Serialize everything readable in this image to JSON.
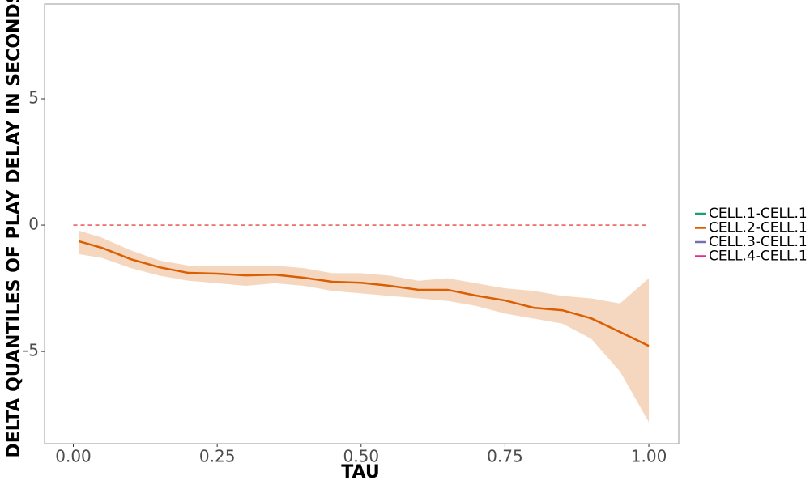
{
  "chart_data": {
    "type": "line",
    "x_label": "TAU",
    "y_label": "DELTA QUANTILES OF PLAY DELAY IN SECONDS",
    "x": [
      0.01,
      0.05,
      0.1,
      0.15,
      0.2,
      0.25,
      0.3,
      0.35,
      0.4,
      0.45,
      0.5,
      0.55,
      0.6,
      0.65,
      0.7,
      0.75,
      0.8,
      0.85,
      0.9,
      0.95,
      1.0
    ],
    "series": [
      {
        "name": "CELL.1-CELL.1",
        "color": "#1b9e77"
      },
      {
        "name": "CELL.2-CELL.1",
        "color": "#d95f02",
        "values": [
          -0.64,
          -0.9,
          -1.35,
          -1.67,
          -1.89,
          -1.92,
          -1.99,
          -1.96,
          -2.08,
          -2.24,
          -2.28,
          -2.4,
          -2.56,
          -2.56,
          -2.79,
          -2.98,
          -3.27,
          -3.37,
          -3.69,
          -4.23,
          -4.78
        ],
        "upper": [
          -0.22,
          -0.5,
          -1.0,
          -1.4,
          -1.6,
          -1.6,
          -1.6,
          -1.6,
          -1.7,
          -1.9,
          -1.9,
          -2.0,
          -2.2,
          -2.1,
          -2.3,
          -2.5,
          -2.6,
          -2.8,
          -2.9,
          -3.1,
          -2.1
        ],
        "lower": [
          -1.15,
          -1.3,
          -1.7,
          -2.0,
          -2.2,
          -2.3,
          -2.4,
          -2.3,
          -2.4,
          -2.6,
          -2.7,
          -2.8,
          -2.9,
          -3.0,
          -3.2,
          -3.5,
          -3.7,
          -3.9,
          -4.5,
          -5.8,
          -7.8
        ]
      },
      {
        "name": "CELL.3-CELL.1",
        "color": "#7570b3"
      },
      {
        "name": "CELL.4-CELL.1",
        "color": "#e7298a"
      }
    ],
    "hline": 0,
    "hline_color": "#e41a1c",
    "xlim": [
      -0.05,
      1.052
    ],
    "ylim": [
      -8.65,
      8.75
    ],
    "xticks": [
      {
        "value": 0,
        "label": "0.00"
      },
      0.25,
      {
        "value": 0.5,
        "label": "0.50"
      },
      0.75,
      {
        "value": 1,
        "label": "1.00"
      }
    ],
    "yticks": [
      -5,
      0,
      5
    ],
    "grid": false,
    "legend": "right"
  }
}
